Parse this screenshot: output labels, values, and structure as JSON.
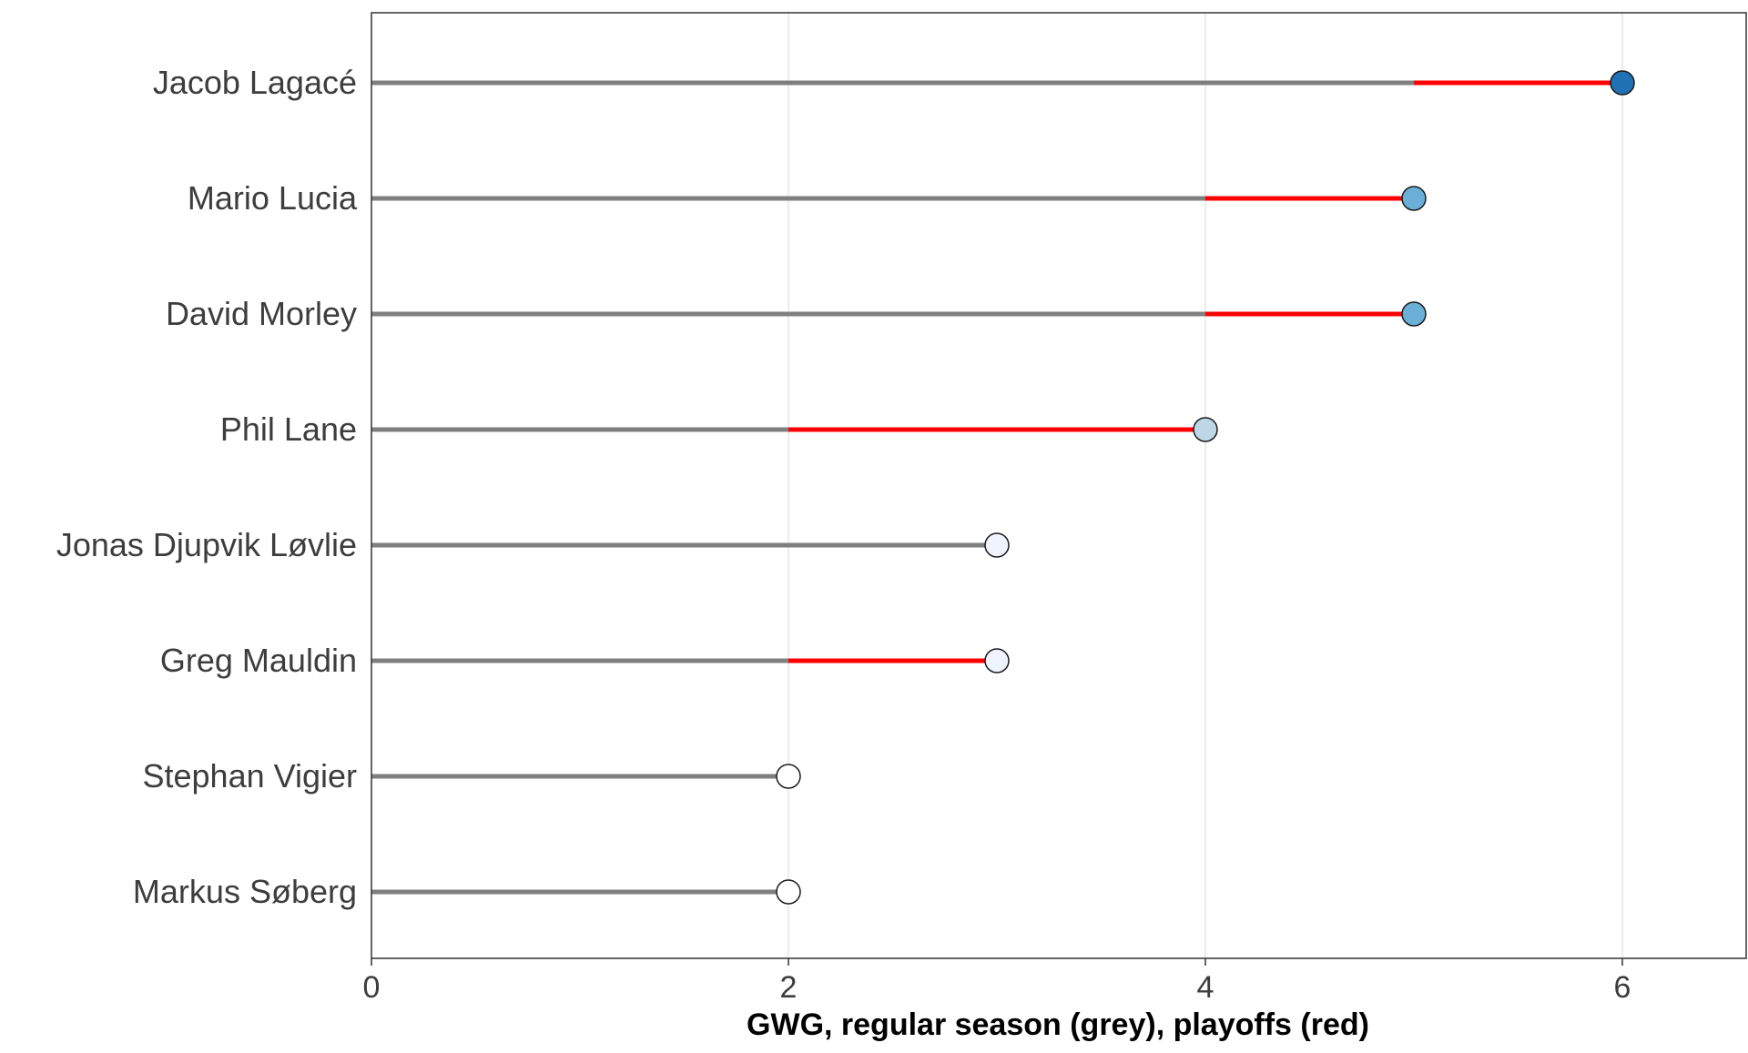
{
  "chart_data": {
    "type": "lollipop",
    "title": "",
    "xlabel": "GWG, regular season (grey), playoffs (red)",
    "ylabel": "",
    "xlim": [
      0,
      6.6
    ],
    "xticks": [
      0,
      2,
      4,
      6
    ],
    "xtick_labels": [
      "0",
      "2",
      "4",
      "6"
    ],
    "grid": "vertical major gridlines",
    "legend": "none",
    "colors": {
      "regular_season": "#7f7f7f",
      "playoffs": "#ff0000",
      "point_outline": "#1a1a1a",
      "gridline": "#e6e6e6",
      "panel_border": "#333333"
    },
    "players": [
      {
        "name": "Jacob Lagacé",
        "regular_season": 5,
        "playoffs": 1,
        "total": 6,
        "point_color": "#2171b5"
      },
      {
        "name": "Mario Lucia",
        "regular_season": 4,
        "playoffs": 1,
        "total": 5,
        "point_color": "#6baed6"
      },
      {
        "name": "David Morley",
        "regular_season": 4,
        "playoffs": 1,
        "total": 5,
        "point_color": "#6baed6"
      },
      {
        "name": "Phil Lane",
        "regular_season": 2,
        "playoffs": 2,
        "total": 4,
        "point_color": "#bdd7e7"
      },
      {
        "name": "Jonas Djupvik Løvlie",
        "regular_season": 3,
        "playoffs": 0,
        "total": 3,
        "point_color": "#eff3ff"
      },
      {
        "name": "Greg Mauldin",
        "regular_season": 2,
        "playoffs": 1,
        "total": 3,
        "point_color": "#eff3ff"
      },
      {
        "name": "Stephan Vigier",
        "regular_season": 2,
        "playoffs": 0,
        "total": 2,
        "point_color": "#ffffff"
      },
      {
        "name": "Markus Søberg",
        "regular_season": 2,
        "playoffs": 0,
        "total": 2,
        "point_color": "#ffffff"
      }
    ]
  }
}
